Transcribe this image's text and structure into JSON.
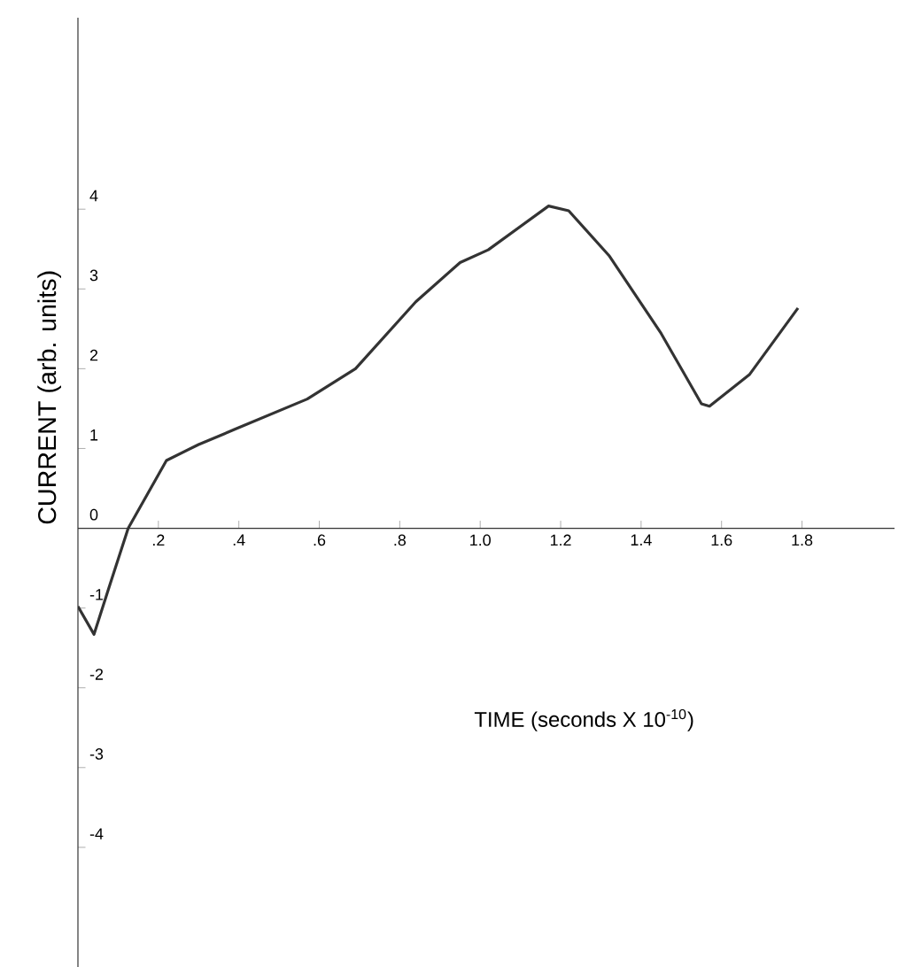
{
  "chart_data": {
    "type": "line",
    "xlabel": "TIME   (seconds X 10$^{-10}$)",
    "ylabel": "CURRENT   (arb. units)",
    "xlim": [
      0,
      2.03
    ],
    "ylim": [
      -5.5,
      6.4
    ],
    "xticks": [
      {
        "value": 0.2,
        "label": ".2"
      },
      {
        "value": 0.4,
        "label": ".4"
      },
      {
        "value": 0.6,
        "label": ".6"
      },
      {
        "value": 0.8,
        "label": ".8"
      },
      {
        "value": 1.0,
        "label": "1.0"
      },
      {
        "value": 1.2,
        "label": "1.2"
      },
      {
        "value": 1.4,
        "label": "1.4"
      },
      {
        "value": 1.6,
        "label": "1.6"
      },
      {
        "value": 1.8,
        "label": "1.8"
      }
    ],
    "yticks": [
      -4,
      -3,
      -2,
      -1,
      0,
      1,
      2,
      3,
      4
    ],
    "grid": false,
    "series": [
      {
        "color": "#333333",
        "x": [
          0,
          0.04,
          0.08,
          0.125,
          0.22,
          0.3,
          0.39,
          0.57,
          0.69,
          0.84,
          0.95,
          1.02,
          1.17,
          1.22,
          1.32,
          1.45,
          1.55,
          1.57,
          1.67,
          1.79
        ],
        "values": [
          -0.98,
          -1.33,
          -0.7,
          0,
          0.85,
          1.05,
          1.24,
          1.62,
          2.0,
          2.84,
          3.33,
          3.49,
          4.04,
          3.98,
          3.42,
          2.44,
          1.56,
          1.53,
          1.93,
          2.76
        ]
      }
    ]
  }
}
